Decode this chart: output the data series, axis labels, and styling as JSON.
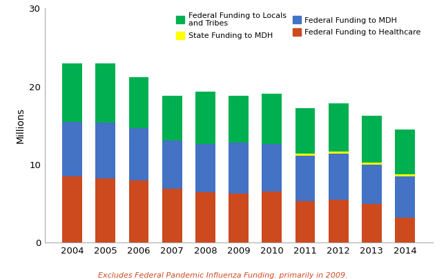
{
  "years": [
    "2004",
    "2005",
    "2006",
    "2007",
    "2008",
    "2009",
    "2010",
    "2011",
    "2012",
    "2013",
    "2014"
  ],
  "federal_to_healthcare": [
    8.5,
    8.2,
    8.0,
    6.9,
    6.5,
    6.3,
    6.6,
    5.3,
    5.5,
    5.0,
    3.2
  ],
  "federal_to_mdh": [
    7.0,
    7.2,
    6.7,
    6.2,
    6.1,
    6.5,
    6.0,
    5.8,
    5.9,
    5.0,
    5.3
  ],
  "state_to_mdh": [
    0.0,
    0.0,
    0.0,
    0.0,
    0.0,
    0.0,
    0.0,
    0.3,
    0.3,
    0.3,
    0.3
  ],
  "federal_to_locals": [
    7.5,
    7.6,
    6.5,
    5.7,
    6.7,
    6.0,
    6.5,
    5.8,
    6.1,
    6.0,
    5.7
  ],
  "colors": {
    "federal_to_healthcare": "#CC4A1E",
    "federal_to_mdh": "#4472C4",
    "state_to_mdh": "#FFFF00",
    "federal_to_locals": "#00B050"
  },
  "legend_labels": {
    "federal_to_locals": "Federal Funding to Locals\nand Tribes",
    "state_to_mdh": "State Funding to MDH",
    "federal_to_mdh": "Federal Funding to MDH",
    "federal_to_healthcare": "Federal Funding to Healthcare"
  },
  "ylabel": "Millions",
  "ylim": [
    0,
    30
  ],
  "yticks": [
    0,
    10,
    20,
    30
  ],
  "footnote": "Excludes Federal Pandemic Influenza Funding. primarily in 2009.",
  "footnote_color": "#CC4A1E",
  "background_color": "#FFFFFF",
  "bar_width": 0.6
}
